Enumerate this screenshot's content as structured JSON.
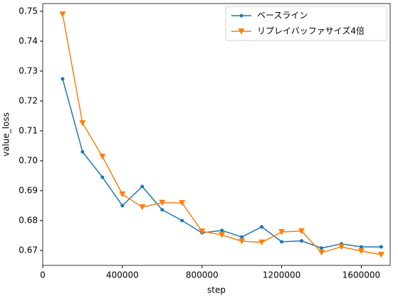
{
  "chart_data": {
    "type": "line",
    "x_label": "step",
    "y_label": "value_loss",
    "x": [
      100000,
      200000,
      300000,
      400000,
      500000,
      600000,
      700000,
      800000,
      900000,
      1000000,
      1100000,
      1200000,
      1300000,
      1400000,
      1500000,
      1600000,
      1700000
    ],
    "series": [
      {
        "name": "ベースライン",
        "color": "#1f77b4",
        "marker": "circle",
        "values": [
          0.7274,
          0.703,
          0.6945,
          0.685,
          0.6914,
          0.6836,
          0.68,
          0.6759,
          0.6767,
          0.6745,
          0.6779,
          0.6729,
          0.6732,
          0.6708,
          0.6722,
          0.6712,
          0.6712
        ]
      },
      {
        "name": "リプレイバッファサイズ4倍",
        "color": "#ff7f0e",
        "marker": "triangle-down",
        "values": [
          0.749,
          0.7126,
          0.7014,
          0.6888,
          0.6845,
          0.686,
          0.6859,
          0.6764,
          0.6752,
          0.6731,
          0.6727,
          0.6762,
          0.6765,
          0.6693,
          0.6712,
          0.6698,
          0.6686
        ]
      }
    ],
    "xlim": [
      0,
      1745000
    ],
    "xticks": [
      0,
      400000,
      800000,
      1200000,
      1600000
    ],
    "ylim": [
      0.665,
      0.7526
    ],
    "yticks": [
      0.67,
      0.68,
      0.69,
      {
        "value": 0.7,
        "label": "0.70"
      },
      0.71,
      0.72,
      0.73,
      0.74,
      0.75
    ],
    "legend": "upper right"
  }
}
